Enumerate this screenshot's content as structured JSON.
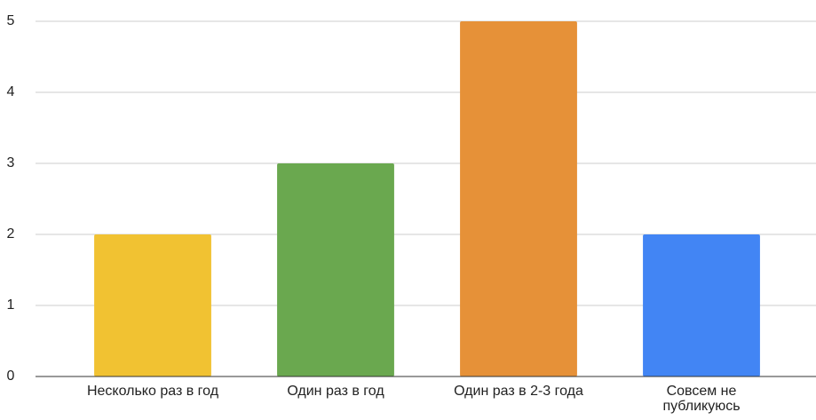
{
  "chart_data": {
    "type": "bar",
    "categories": [
      "Несколько раз в год",
      "Один раз в год",
      "Один раз в 2-3 года",
      "Совсем не публикуюсь"
    ],
    "values": [
      2,
      3,
      5,
      2
    ],
    "colors": [
      "#f1c232",
      "#6aa84f",
      "#e69138",
      "#4285f4"
    ],
    "ylim": [
      0,
      5
    ],
    "yticks": [
      0,
      1,
      2,
      3,
      4,
      5
    ],
    "grid": true
  }
}
